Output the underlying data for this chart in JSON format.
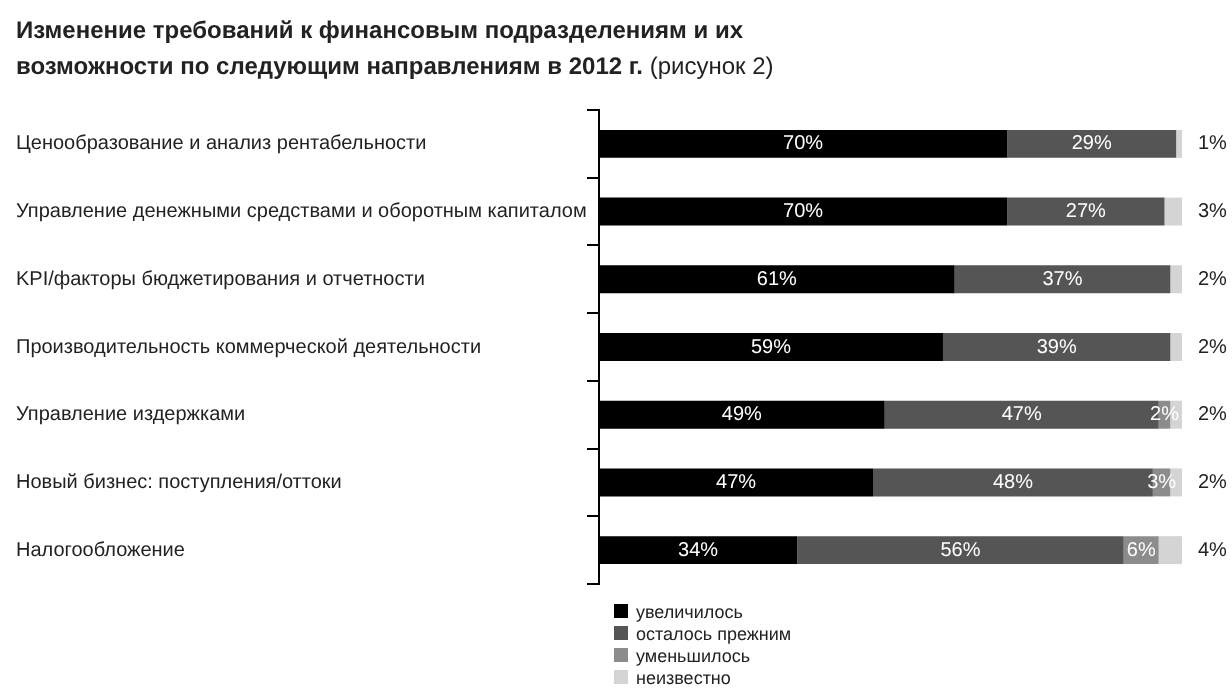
{
  "chart_data": {
    "type": "bar",
    "orientation": "horizontal",
    "stacked": true,
    "title": "Изменение требований к финансовым подразделениям и их возможности по следующим направлениям в 2012 г.",
    "subtitle": "(рисунок 2)",
    "categories": [
      "Ценообразование и анализ рентабельности",
      "Управление денежными средствами и оборотным капиталом",
      "KPI/факторы бюджетирования и отчетности",
      "Производительность коммерческой деятельности",
      "Управление издержками",
      "Новый бизнес: поступления/оттоки",
      "Налогообложение"
    ],
    "series": [
      {
        "name": "увеличилось",
        "color": "#000000",
        "values": [
          70,
          70,
          61,
          59,
          49,
          47,
          34
        ],
        "value_labels": [
          "70%",
          "70%",
          "61%",
          "59%",
          "49%",
          "47%",
          "34%"
        ]
      },
      {
        "name": "осталось прежним",
        "color": "#555555",
        "values": [
          29,
          27,
          37,
          39,
          47,
          48,
          56
        ],
        "value_labels": [
          "29%",
          "27%",
          "37%",
          "39%",
          "47%",
          "48%",
          "56%"
        ]
      },
      {
        "name": "уменьшилось",
        "color": "#8c8c8c",
        "values": [
          null,
          null,
          null,
          null,
          2,
          3,
          6
        ],
        "value_labels": [
          null,
          null,
          null,
          null,
          "2%",
          "3%",
          "6%"
        ]
      },
      {
        "name": "неизвестно",
        "color": "#d4d4d4",
        "values": [
          1,
          3,
          2,
          2,
          2,
          2,
          4
        ],
        "value_labels": [
          "1%",
          "3%",
          "2%",
          "2%",
          "2%",
          "2%",
          "4%"
        ]
      }
    ],
    "xlim": [
      0,
      100
    ],
    "tick_labels": "y",
    "legend": "bottom left"
  }
}
